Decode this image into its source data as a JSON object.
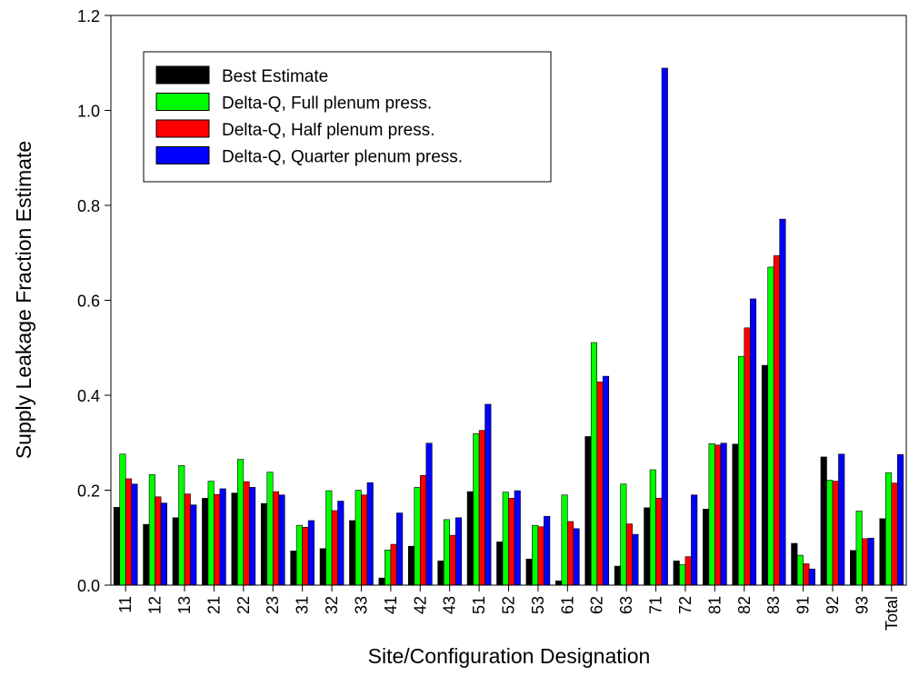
{
  "chart_data": {
    "type": "bar",
    "xlabel": "Site/Configuration Designation",
    "ylabel": "Supply Leakage Fraction Estimate",
    "ylim": [
      0,
      1.2
    ],
    "yticks": [
      "0.0",
      "0.2",
      "0.4",
      "0.6",
      "0.8",
      "1.0",
      "1.2"
    ],
    "grid": false,
    "legend_position": "top-left",
    "categories": [
      "11",
      "12",
      "13",
      "21",
      "22",
      "23",
      "31",
      "32",
      "33",
      "41",
      "42",
      "43",
      "51",
      "52",
      "53",
      "61",
      "62",
      "63",
      "71",
      "72",
      "81",
      "82",
      "83",
      "91",
      "92",
      "93",
      "Total"
    ],
    "series": [
      {
        "name": "Best Estimate",
        "color": "#000000",
        "values": [
          0.164,
          0.128,
          0.142,
          0.183,
          0.194,
          0.172,
          0.072,
          0.077,
          0.136,
          0.015,
          0.082,
          0.051,
          0.197,
          0.091,
          0.055,
          0.009,
          0.313,
          0.04,
          0.163,
          0.051,
          0.16,
          0.297,
          0.463,
          0.088,
          0.27,
          0.073,
          0.14
        ]
      },
      {
        "name": "Delta-Q, Full plenum press.",
        "color": "#00ff00",
        "values": [
          0.276,
          0.233,
          0.252,
          0.219,
          0.265,
          0.238,
          0.126,
          0.199,
          0.2,
          0.074,
          0.206,
          0.138,
          0.319,
          0.196,
          0.126,
          0.19,
          0.511,
          0.213,
          0.243,
          0.043,
          0.298,
          0.482,
          0.67,
          0.063,
          0.221,
          0.156,
          0.237
        ]
      },
      {
        "name": "Delta-Q, Half plenum press.",
        "color": "#ff0000",
        "values": [
          0.224,
          0.186,
          0.192,
          0.191,
          0.218,
          0.197,
          0.122,
          0.157,
          0.19,
          0.086,
          0.231,
          0.105,
          0.326,
          0.183,
          0.123,
          0.134,
          0.428,
          0.129,
          0.183,
          0.06,
          0.295,
          0.542,
          0.694,
          0.045,
          0.219,
          0.098,
          0.215
        ]
      },
      {
        "name": "Delta-Q, Quarter plenum press.",
        "color": "#0000ff",
        "values": [
          0.213,
          0.173,
          0.169,
          0.203,
          0.206,
          0.19,
          0.136,
          0.177,
          0.216,
          0.152,
          0.299,
          0.142,
          0.381,
          0.199,
          0.145,
          0.119,
          0.44,
          0.107,
          1.089,
          0.19,
          0.299,
          0.603,
          0.771,
          0.034,
          0.276,
          0.099,
          0.275
        ]
      }
    ]
  }
}
